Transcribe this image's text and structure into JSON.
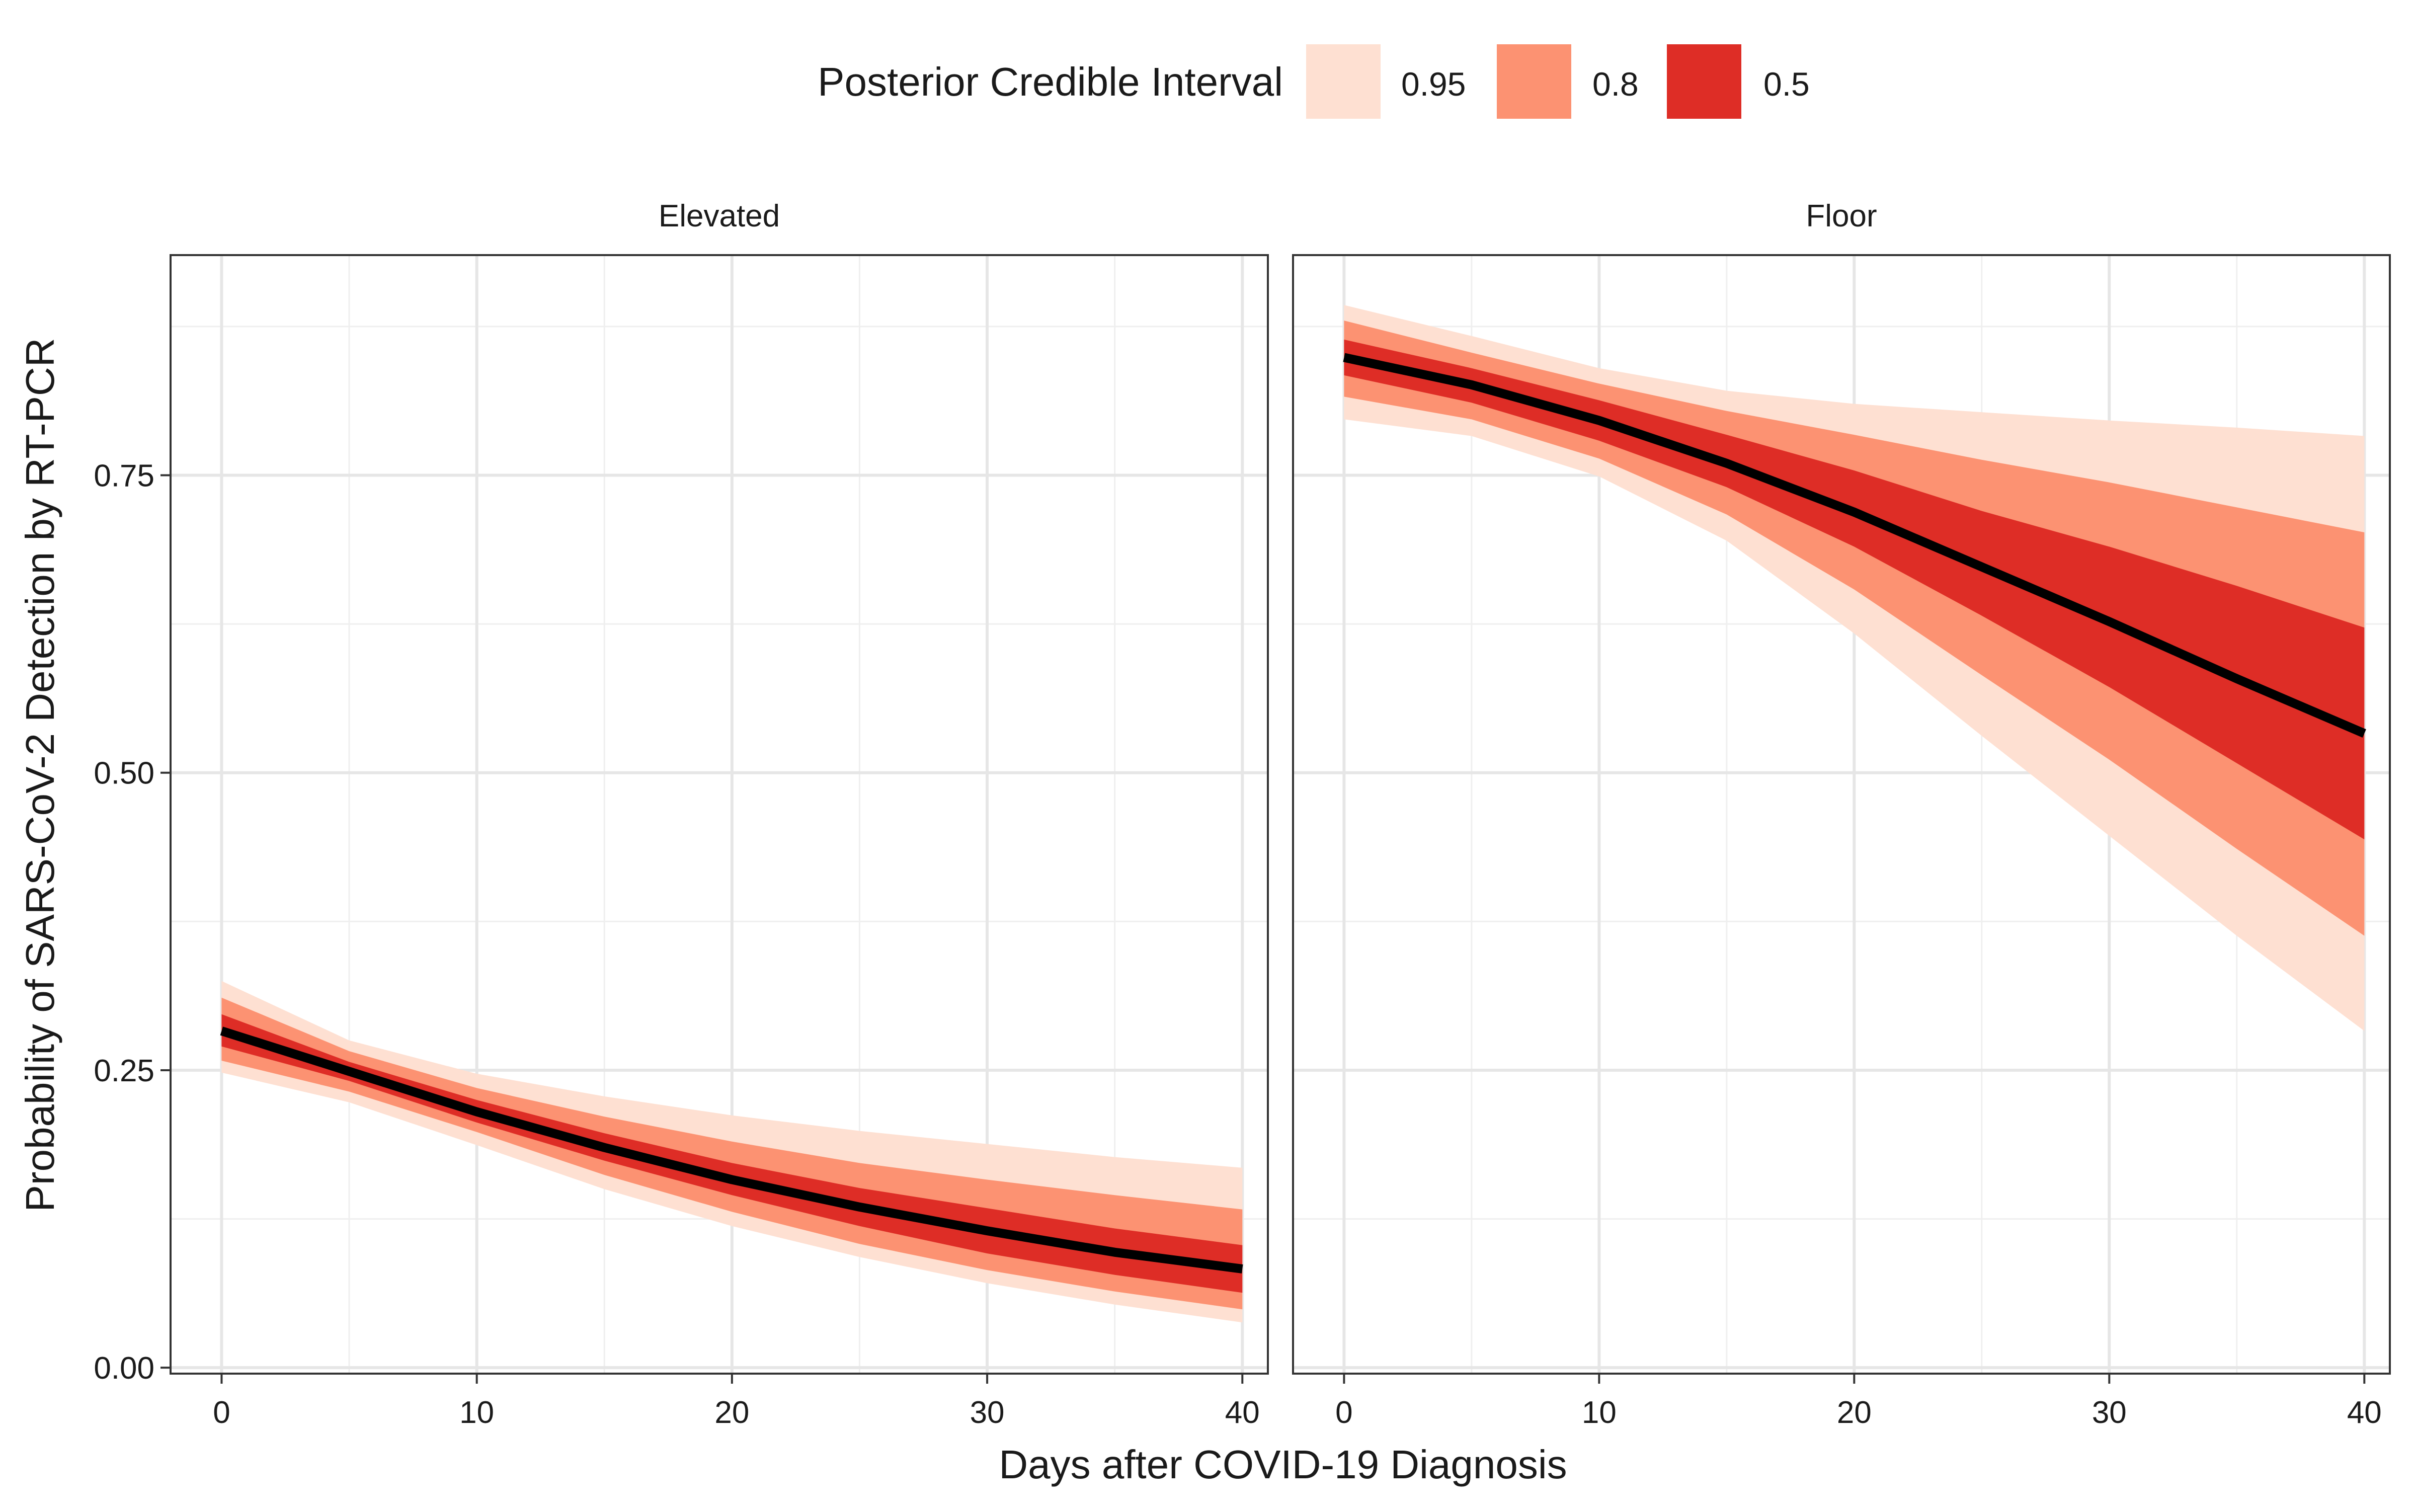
{
  "chart_data": {
    "type": "area",
    "ylabel": "Probability of SARS-CoV-2 Detection by RT-PCR",
    "xlabel": "Days after COVID-19 Diagnosis",
    "legend": {
      "title": "Posterior Credible Interval",
      "placement": "top",
      "items": [
        {
          "label": "0.95",
          "color": "#FEE0D2"
        },
        {
          "label": "0.8",
          "color": "#FC9272"
        },
        {
          "label": "0.5",
          "color": "#DE2D26"
        }
      ]
    },
    "xlim": [
      -2,
      41
    ],
    "ylim": [
      -0.005,
      0.935
    ],
    "x_ticks": [
      0,
      10,
      20,
      30,
      40
    ],
    "x_tick_labels": [
      "0",
      "10",
      "20",
      "30",
      "40"
    ],
    "y_ticks": [
      0,
      0.25,
      0.5,
      0.75
    ],
    "y_tick_labels": [
      "0.00",
      "0.25",
      "0.50",
      "0.75"
    ],
    "grid": true,
    "median_color": "#000000",
    "x": [
      0,
      5,
      10,
      15,
      20,
      25,
      30,
      35,
      40
    ],
    "panels": [
      {
        "title": "Elevated",
        "median": [
          0.283,
          0.249,
          0.215,
          0.185,
          0.158,
          0.135,
          0.115,
          0.097,
          0.083
        ],
        "ci95": {
          "lower": [
            0.248,
            0.223,
            0.187,
            0.15,
            0.119,
            0.093,
            0.071,
            0.053,
            0.038
          ],
          "upper": [
            0.325,
            0.275,
            0.247,
            0.228,
            0.212,
            0.199,
            0.188,
            0.177,
            0.168
          ]
        },
        "ci80": {
          "lower": [
            0.258,
            0.232,
            0.198,
            0.162,
            0.131,
            0.104,
            0.082,
            0.064,
            0.049
          ],
          "upper": [
            0.311,
            0.266,
            0.235,
            0.211,
            0.19,
            0.172,
            0.158,
            0.145,
            0.133
          ]
        },
        "ci50": {
          "lower": [
            0.27,
            0.241,
            0.206,
            0.174,
            0.145,
            0.119,
            0.096,
            0.078,
            0.063
          ],
          "upper": [
            0.297,
            0.257,
            0.225,
            0.197,
            0.172,
            0.151,
            0.134,
            0.117,
            0.103
          ]
        }
      },
      {
        "title": "Floor",
        "median": [
          0.849,
          0.826,
          0.796,
          0.76,
          0.719,
          0.673,
          0.627,
          0.579,
          0.533
        ],
        "ci95": {
          "lower": [
            0.797,
            0.783,
            0.749,
            0.695,
            0.617,
            0.531,
            0.447,
            0.363,
            0.283
          ],
          "upper": [
            0.893,
            0.867,
            0.84,
            0.821,
            0.81,
            0.803,
            0.796,
            0.79,
            0.783
          ]
        },
        "ci80": {
          "lower": [
            0.816,
            0.797,
            0.764,
            0.717,
            0.654,
            0.582,
            0.511,
            0.436,
            0.363
          ],
          "upper": [
            0.88,
            0.853,
            0.827,
            0.804,
            0.784,
            0.763,
            0.744,
            0.723,
            0.702
          ]
        },
        "ci50": {
          "lower": [
            0.834,
            0.811,
            0.779,
            0.74,
            0.69,
            0.632,
            0.572,
            0.508,
            0.444
          ],
          "upper": [
            0.864,
            0.84,
            0.813,
            0.784,
            0.754,
            0.72,
            0.69,
            0.657,
            0.622
          ]
        }
      }
    ]
  }
}
